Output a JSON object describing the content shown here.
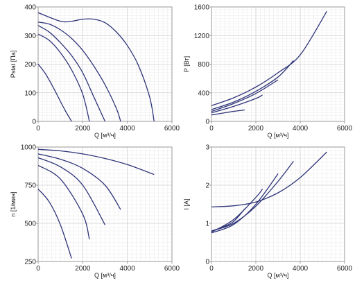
{
  "colors": {
    "curve": "#2e3478",
    "grid_minor": "#ebebeb",
    "grid_major": "#cfcfcf",
    "frame": "#9a9a9a",
    "background": "#ffffff"
  },
  "chart_data": [
    {
      "type": "line",
      "position": "top-left",
      "xlabel": "Q [м³/ч]",
      "ylabel": "Pstat [Па]",
      "xlim": [
        0,
        6000
      ],
      "ylim": [
        0,
        400
      ],
      "xticks": [
        "0",
        "2000",
        "4000",
        "6000"
      ],
      "yticks": [
        "0",
        "100",
        "200",
        "300",
        "400"
      ],
      "grid": true,
      "series": [
        {
          "x": [
            0,
            1000,
            1500,
            2000,
            2500,
            3000,
            3500,
            4000,
            4500,
            5000,
            5200
          ],
          "y": [
            380,
            350,
            350,
            357,
            357,
            345,
            313,
            265,
            195,
            85,
            0
          ]
        },
        {
          "x": [
            0,
            500,
            1000,
            1500,
            2000,
            2500,
            3000,
            3500,
            3700
          ],
          "y": [
            347,
            340,
            320,
            290,
            248,
            193,
            128,
            47,
            0
          ]
        },
        {
          "x": [
            0,
            500,
            1000,
            1500,
            2000,
            2500,
            3000
          ],
          "y": [
            335,
            312,
            275,
            230,
            170,
            85,
            0
          ]
        },
        {
          "x": [
            0,
            500,
            1000,
            1500,
            2000,
            2300
          ],
          "y": [
            305,
            283,
            240,
            180,
            95,
            0
          ]
        },
        {
          "x": [
            0,
            300,
            600,
            900,
            1200,
            1500
          ],
          "y": [
            200,
            170,
            130,
            85,
            40,
            0
          ]
        }
      ]
    },
    {
      "type": "line",
      "position": "top-right",
      "xlabel": "Q [м³/ч]",
      "ylabel": "P [Вт]",
      "xlim": [
        0,
        6000
      ],
      "ylim": [
        0,
        1600
      ],
      "xticks": [
        "0",
        "2000",
        "4000",
        "6000"
      ],
      "yticks": [
        "0",
        "400",
        "800",
        "1200",
        "1600"
      ],
      "grid": true,
      "series": [
        {
          "x": [
            0,
            1000,
            2000,
            3000,
            4000,
            5200
          ],
          "y": [
            220,
            330,
            480,
            680,
            930,
            1540
          ]
        },
        {
          "x": [
            0,
            1000,
            2000,
            3000,
            3700
          ],
          "y": [
            165,
            270,
            420,
            620,
            850
          ]
        },
        {
          "x": [
            0,
            1000,
            2000,
            3000
          ],
          "y": [
            140,
            250,
            390,
            580
          ]
        },
        {
          "x": [
            0,
            1000,
            2000,
            2300
          ],
          "y": [
            120,
            210,
            320,
            370
          ]
        },
        {
          "x": [
            0,
            500,
            1000,
            1500
          ],
          "y": [
            90,
            115,
            140,
            160
          ]
        }
      ]
    },
    {
      "type": "line",
      "position": "bottom-left",
      "xlabel": "Q [м³/ч]",
      "ylabel": "n [1/мин]",
      "xlim": [
        0,
        6000
      ],
      "ylim": [
        250,
        1000
      ],
      "xticks": [
        "0",
        "2000",
        "4000",
        "6000"
      ],
      "yticks": [
        "250",
        "500",
        "750",
        "1000"
      ],
      "grid": true,
      "series": [
        {
          "x": [
            0,
            1000,
            2000,
            3000,
            4000,
            5200
          ],
          "y": [
            985,
            975,
            955,
            925,
            885,
            820
          ]
        },
        {
          "x": [
            0,
            1000,
            2000,
            3000,
            3700
          ],
          "y": [
            955,
            920,
            860,
            750,
            590
          ]
        },
        {
          "x": [
            0,
            1000,
            2000,
            3000
          ],
          "y": [
            930,
            870,
            750,
            490
          ]
        },
        {
          "x": [
            0,
            1000,
            2000,
            2300
          ],
          "y": [
            880,
            790,
            560,
            395
          ]
        },
        {
          "x": [
            0,
            500,
            1000,
            1500
          ],
          "y": [
            725,
            640,
            490,
            270
          ]
        }
      ]
    },
    {
      "type": "line",
      "position": "bottom-right",
      "xlabel": "Q [м³/ч]",
      "ylabel": "I [A]",
      "xlim": [
        0,
        6000
      ],
      "ylim": [
        0,
        3
      ],
      "xticks": [
        "0",
        "2000",
        "4000",
        "6000"
      ],
      "yticks": [
        "0",
        "1",
        "2",
        "3"
      ],
      "grid": true,
      "series": [
        {
          "x": [
            0,
            1000,
            2000,
            3000,
            4000,
            5200
          ],
          "y": [
            1.43,
            1.46,
            1.56,
            1.8,
            2.2,
            2.87
          ]
        },
        {
          "x": [
            0,
            1000,
            2000,
            3000,
            3700
          ],
          "y": [
            0.8,
            1.0,
            1.45,
            2.1,
            2.63
          ]
        },
        {
          "x": [
            0,
            1000,
            2000,
            3000
          ],
          "y": [
            0.75,
            0.97,
            1.5,
            2.3
          ]
        },
        {
          "x": [
            0,
            1000,
            2000,
            2300
          ],
          "y": [
            0.77,
            1.1,
            1.68,
            1.9
          ]
        },
        {
          "x": [
            0,
            500,
            1000,
            1500
          ],
          "y": [
            0.8,
            0.9,
            1.05,
            1.38
          ]
        }
      ]
    }
  ]
}
